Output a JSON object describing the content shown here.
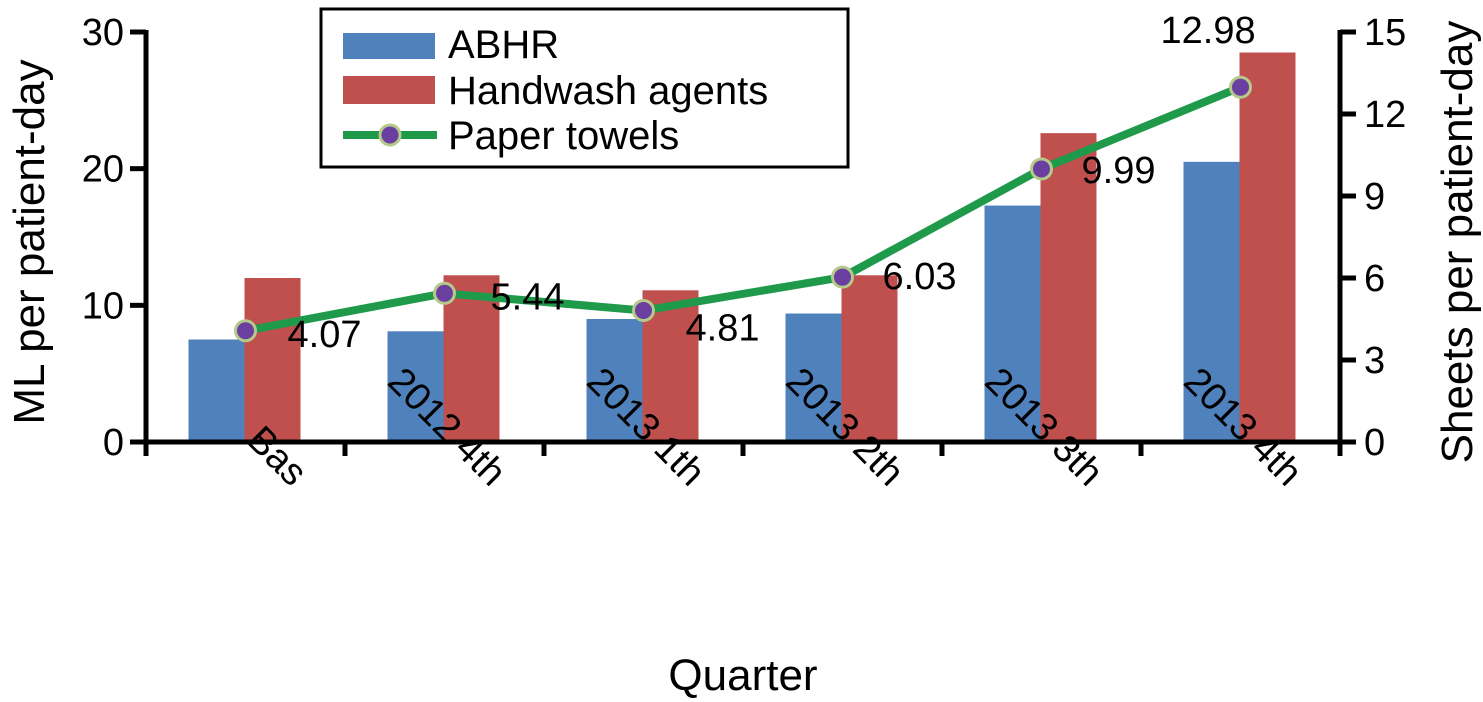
{
  "chart_data": {
    "type": "bar",
    "xlabel": "Quarter",
    "ylabel_left": "ML per patient-day",
    "ylabel_right": "Sheets per patient-day",
    "categories": [
      "Bas",
      "2012 4th",
      "2013 1th",
      "2013 2th",
      "2013 3th",
      "2013 4th"
    ],
    "ylim_left": [
      0,
      30
    ],
    "yticks_left": [
      "0",
      "10",
      "20",
      "30"
    ],
    "ylim_right": [
      0,
      15
    ],
    "yticks_right": [
      "0",
      "3",
      "6",
      "9",
      "12",
      "15"
    ],
    "grid": false,
    "legend_position": "top-left",
    "series": [
      {
        "name": "ABHR",
        "axis": "left",
        "kind": "bar",
        "color": "#4f81bd",
        "values": [
          7.5,
          8.1,
          9.0,
          9.4,
          17.3,
          20.5
        ]
      },
      {
        "name": "Handwash agents",
        "axis": "left",
        "kind": "bar",
        "color": "#c0504d",
        "values": [
          12.0,
          12.2,
          11.1,
          12.2,
          22.6,
          28.5
        ]
      },
      {
        "name": "Paper towels",
        "axis": "right",
        "kind": "line",
        "color": "#1f9a4a",
        "marker_color": "#6b3fa0",
        "values": [
          4.07,
          5.44,
          4.81,
          6.03,
          9.99,
          12.98
        ],
        "labels": [
          "4.07",
          "5.44",
          "4.81",
          "6.03",
          "9.99",
          "12.98"
        ]
      }
    ]
  }
}
